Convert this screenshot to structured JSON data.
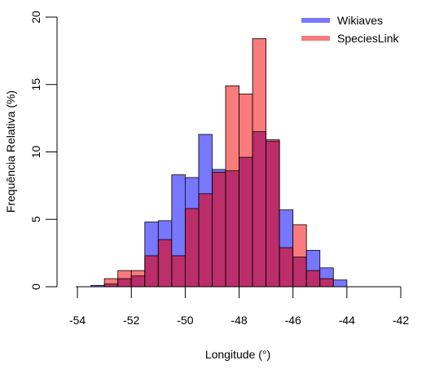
{
  "chart_data": {
    "type": "bar",
    "xlabel": "Longitude (°)",
    "ylabel": "Frequência Relativa (%)",
    "xlim": [
      -55,
      -42
    ],
    "ylim": [
      0,
      20
    ],
    "x_ticks": [
      "-54",
      "-52",
      "-50",
      "-48",
      "-46",
      "-44",
      "-42"
    ],
    "y_ticks": [
      "0",
      "5",
      "10",
      "15",
      "20"
    ],
    "legend_position": "top-right",
    "bin_width": 0.5,
    "bins_start": [
      -53.5,
      -53.0,
      -52.5,
      -52.0,
      -51.5,
      -51.0,
      -50.5,
      -50.0,
      -49.5,
      -49.0,
      -48.5,
      -48.0,
      -47.5,
      -47.0,
      -46.5,
      -46.0,
      -45.5,
      -45.0,
      -44.5
    ],
    "series": [
      {
        "name": "Wikiaves",
        "color": "#7777ff",
        "values": [
          0.1,
          0.2,
          0.6,
          0.8,
          4.8,
          4.9,
          8.3,
          8.1,
          11.3,
          8.7,
          8.6,
          9.6,
          11.5,
          10.8,
          5.7,
          2.2,
          2.7,
          1.4,
          0.5
        ]
      },
      {
        "name": "SpeciesLink",
        "color": "#fa7b7b",
        "values": [
          0.0,
          0.6,
          1.2,
          1.2,
          2.3,
          3.5,
          2.3,
          5.8,
          6.9,
          8.5,
          14.9,
          14.3,
          18.4,
          10.9,
          2.9,
          4.6,
          1.2,
          0.6,
          0.0
        ]
      }
    ],
    "overlap_color": "#bb2e6a"
  }
}
